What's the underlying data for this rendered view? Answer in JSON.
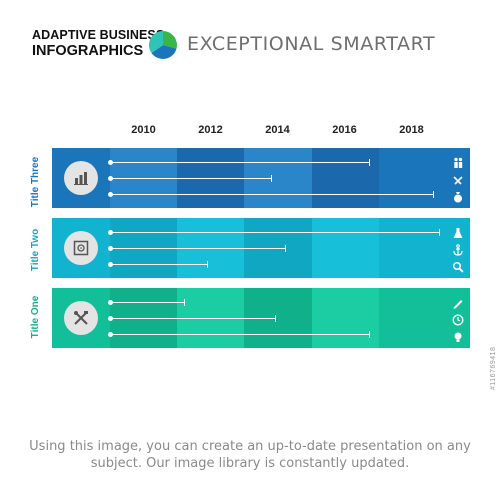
{
  "header": {
    "brand_line1": "ADAPTIVE BUSINESS",
    "brand_line2": "INFOGRAPHICS",
    "title": "EXCEPTIONAL SMARTART",
    "logo_colors": [
      "#39b54a",
      "#2ec4b6",
      "#1b75bb"
    ]
  },
  "years": [
    "2010",
    "2012",
    "2014",
    "2016",
    "2018"
  ],
  "rows": [
    {
      "label": "Title Three",
      "label_color": "#1b75bb",
      "column_colors": [
        "#1b75bb",
        "#2a85c9",
        "#1b68ad",
        "#2a85c9",
        "#1b68ad",
        "#1b75bb"
      ],
      "main_icon": "bar-chart-icon",
      "bar_ends_year": [
        2016.7,
        2013.8,
        2018.6
      ],
      "side_icons": [
        "people-icon",
        "handshake-icon",
        "money-bag-icon"
      ]
    },
    {
      "label": "Title Two",
      "label_color": "#1aa5c2",
      "column_colors": [
        "#12b3cf",
        "#10a7c3",
        "#18bfd9",
        "#10a7c3",
        "#18bfd9",
        "#12b3cf"
      ],
      "main_icon": "safe-icon",
      "bar_ends_year": [
        2018.8,
        2014.2,
        2011.9
      ],
      "side_icons": [
        "flask-icon",
        "anchor-icon",
        "search-icon"
      ]
    },
    {
      "label": "Title One",
      "label_color": "#14b08e",
      "column_colors": [
        "#13bf98",
        "#10b08a",
        "#1ccda4",
        "#10b08a",
        "#1ccda4",
        "#13bf98"
      ],
      "main_icon": "tools-icon",
      "bar_ends_year": [
        2011.2,
        2013.9,
        2016.7
      ],
      "side_icons": [
        "pencil-icon",
        "clock-icon",
        "lightbulb-icon"
      ]
    }
  ],
  "caption": "Using this image, you can create an up-to-date presentation on any subject. Our image library is constantly updated.",
  "side_id": "#116769418"
}
